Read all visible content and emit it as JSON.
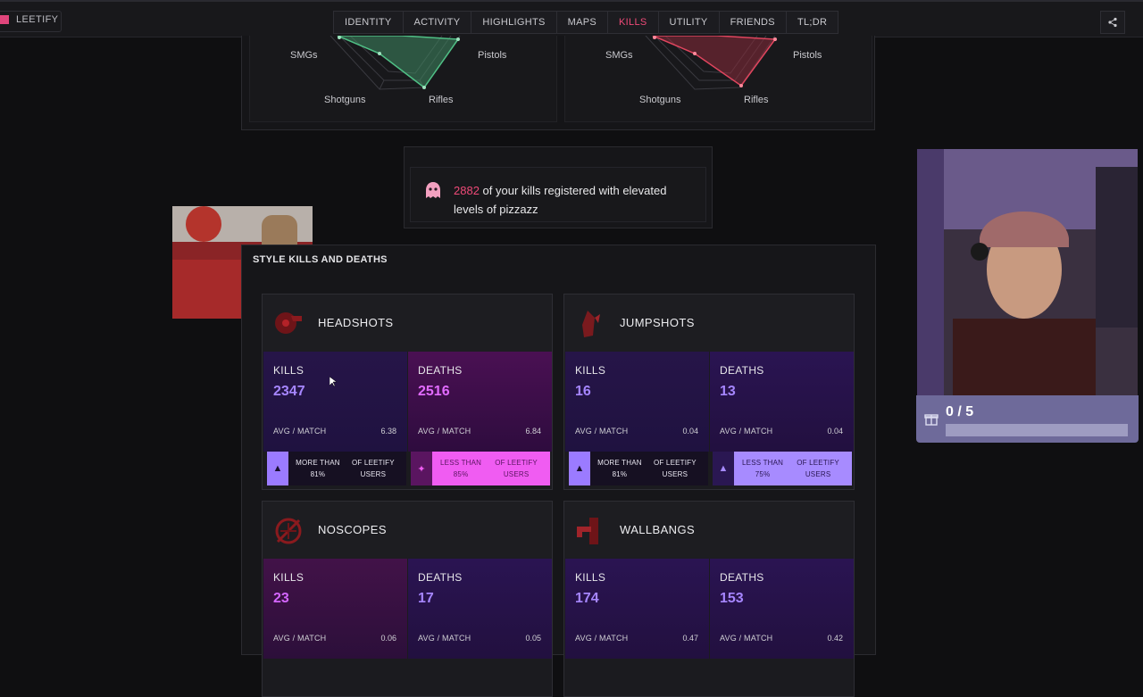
{
  "app": {
    "name": "LEETIFY"
  },
  "nav": {
    "tabs": [
      {
        "label": "IDENTITY",
        "active": false
      },
      {
        "label": "ACTIVITY",
        "active": false
      },
      {
        "label": "HIGHLIGHTS",
        "active": false
      },
      {
        "label": "MAPS",
        "active": false
      },
      {
        "label": "KILLS",
        "active": true
      },
      {
        "label": "UTILITY",
        "active": false
      },
      {
        "label": "FRIENDS",
        "active": false
      },
      {
        "label": "TL;DR",
        "active": false
      }
    ]
  },
  "radar": {
    "left": {
      "labels": [
        "SMGs",
        "Pistols",
        "Shotguns",
        "Rifles"
      ],
      "color": "#4fbf85"
    },
    "right": {
      "labels": [
        "SMGs",
        "Pistols",
        "Shotguns",
        "Rifles"
      ],
      "color": "#e0455e"
    }
  },
  "pizzazz": {
    "count": "2882",
    "text_a": " of your kills registered with elevated",
    "text_b": "levels of pizzazz"
  },
  "style": {
    "title": "STYLE KILLS AND DEATHS",
    "cards": [
      {
        "title": "HEADSHOTS",
        "icon": "headshot-icon",
        "kills_label": "KILLS",
        "kills": "2347",
        "kills_avg_label": "AVG / MATCH",
        "kills_avg": "6.38",
        "deaths_label": "DEATHS",
        "deaths": "2516",
        "deaths_avg_label": "AVG / MATCH",
        "deaths_avg": "6.84",
        "kills_badge": [
          "MORE THAN 81%",
          "OF LEETIFY USERS"
        ],
        "deaths_badge": [
          "LESS THAN 85%",
          "OF LEETIFY USERS"
        ]
      },
      {
        "title": "JUMPSHOTS",
        "icon": "jump-icon",
        "kills_label": "KILLS",
        "kills": "16",
        "kills_avg_label": "AVG / MATCH",
        "kills_avg": "0.04",
        "deaths_label": "DEATHS",
        "deaths": "13",
        "deaths_avg_label": "AVG / MATCH",
        "deaths_avg": "0.04",
        "kills_badge": [
          "MORE THAN 81%",
          "OF LEETIFY USERS"
        ],
        "deaths_badge": [
          "LESS THAN 75%",
          "OF LEETIFY USERS"
        ]
      },
      {
        "title": "NOSCOPES",
        "icon": "noscope-icon",
        "kills_label": "KILLS",
        "kills": "23",
        "kills_avg_label": "AVG / MATCH",
        "kills_avg": "0.06",
        "deaths_label": "DEATHS",
        "deaths": "17",
        "deaths_avg_label": "AVG / MATCH",
        "deaths_avg": "0.05"
      },
      {
        "title": "WALLBANGS",
        "icon": "wallbang-icon",
        "kills_label": "KILLS",
        "kills": "174",
        "kills_avg_label": "AVG / MATCH",
        "kills_avg": "0.47",
        "deaths_label": "DEATHS",
        "deaths": "153",
        "deaths_avg_label": "AVG / MATCH",
        "deaths_avg": "0.42"
      }
    ]
  },
  "overlay": {
    "goal_text": "0 / 5",
    "goal_progress": 0
  }
}
